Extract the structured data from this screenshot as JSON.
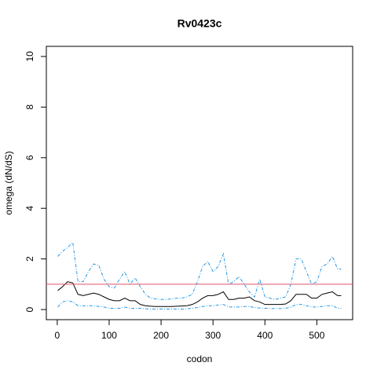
{
  "chart_data": {
    "type": "line",
    "title": "Rv0423c",
    "xlabel": "codon",
    "ylabel": "omega (dN/dS)",
    "x": [
      1,
      10,
      20,
      30,
      40,
      50,
      60,
      70,
      80,
      90,
      100,
      110,
      120,
      130,
      140,
      150,
      160,
      170,
      180,
      190,
      200,
      210,
      220,
      230,
      240,
      250,
      260,
      270,
      280,
      290,
      300,
      310,
      320,
      330,
      340,
      350,
      360,
      370,
      380,
      390,
      400,
      410,
      420,
      430,
      440,
      450,
      460,
      470,
      480,
      490,
      500,
      510,
      520,
      530,
      540,
      547
    ],
    "series": [
      {
        "color": "#000000",
        "dash": false,
        "values": [
          0.75,
          0.9,
          1.1,
          1.05,
          0.6,
          0.55,
          0.6,
          0.65,
          0.6,
          0.5,
          0.4,
          0.35,
          0.35,
          0.45,
          0.35,
          0.35,
          0.2,
          0.15,
          0.13,
          0.12,
          0.12,
          0.12,
          0.12,
          0.13,
          0.14,
          0.15,
          0.2,
          0.3,
          0.45,
          0.55,
          0.55,
          0.6,
          0.7,
          0.4,
          0.4,
          0.45,
          0.45,
          0.5,
          0.35,
          0.3,
          0.2,
          0.2,
          0.2,
          0.2,
          0.22,
          0.35,
          0.6,
          0.6,
          0.6,
          0.45,
          0.45,
          0.6,
          0.65,
          0.7,
          0.55,
          0.55
        ]
      },
      {
        "color": "#2297e6",
        "dash": true,
        "values": [
          2.1,
          2.3,
          2.45,
          2.65,
          1.1,
          1.1,
          1.5,
          1.8,
          1.75,
          1.2,
          0.9,
          0.85,
          1.2,
          1.5,
          1.0,
          1.25,
          0.9,
          0.6,
          0.45,
          0.42,
          0.4,
          0.4,
          0.42,
          0.45,
          0.45,
          0.5,
          0.6,
          1.1,
          1.7,
          1.9,
          1.5,
          1.7,
          2.2,
          1.0,
          1.1,
          1.3,
          1.0,
          0.7,
          0.5,
          1.2,
          0.5,
          0.45,
          0.4,
          0.45,
          0.5,
          1.0,
          2.0,
          2.0,
          1.5,
          1.0,
          1.1,
          1.7,
          1.8,
          2.1,
          1.6,
          1.6
        ]
      },
      {
        "color": "#2297e6",
        "dash": true,
        "values": [
          0.1,
          0.3,
          0.35,
          0.3,
          0.15,
          0.15,
          0.15,
          0.15,
          0.12,
          0.1,
          0.05,
          0.05,
          0.05,
          0.1,
          0.05,
          0.05,
          0.05,
          0.03,
          0.02,
          0.02,
          0.02,
          0.02,
          0.02,
          0.02,
          0.02,
          0.03,
          0.05,
          0.08,
          0.12,
          0.15,
          0.15,
          0.18,
          0.2,
          0.1,
          0.1,
          0.1,
          0.12,
          0.12,
          0.08,
          0.06,
          0.05,
          0.04,
          0.04,
          0.04,
          0.05,
          0.1,
          0.2,
          0.2,
          0.15,
          0.1,
          0.1,
          0.12,
          0.15,
          0.15,
          0.05,
          0.05
        ]
      }
    ],
    "hline": {
      "value": 1,
      "color": "#df536b"
    },
    "xlim": [
      -21,
      569
    ],
    "ylim": [
      -0.4,
      10.4
    ],
    "xticks": [
      0,
      100,
      200,
      300,
      400,
      500
    ],
    "yticks": [
      0,
      2,
      4,
      6,
      8,
      10
    ]
  }
}
